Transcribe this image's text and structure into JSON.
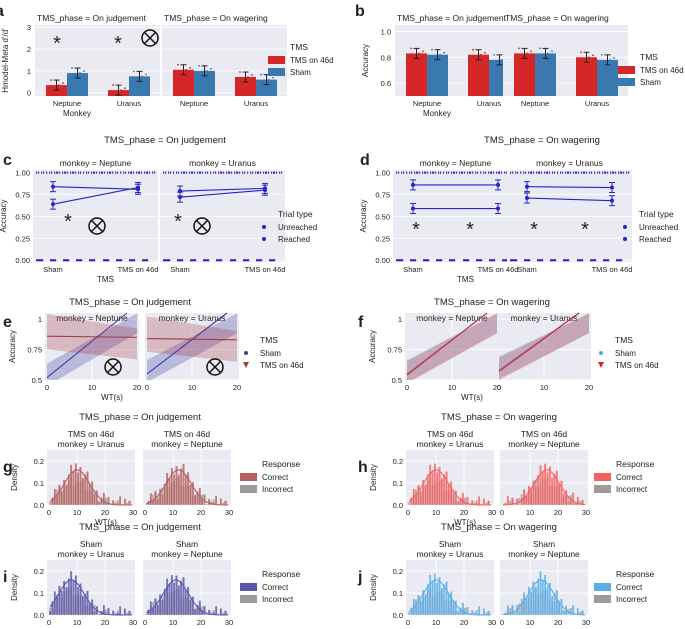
{
  "panels": {
    "a": {
      "label": "a",
      "subtitles": [
        "TMS_phase = On judgement",
        "TMS_phase = On wagering"
      ],
      "ylabel": "Hmodel-Meta d'/d'",
      "xlabel": "Monkey",
      "yticks": [
        "0",
        "1",
        "2",
        "3"
      ],
      "xticks": [
        "Neptune",
        "Uranus"
      ],
      "legend_title": "TMS",
      "legend": [
        "TMS on 46d",
        "Sham"
      ],
      "stars": [
        "*",
        "*"
      ],
      "colors": {
        "tms": "#d62728",
        "sham": "#3a78b0"
      },
      "chart_data": {
        "type": "bar",
        "categories": [
          "Neptune",
          "Uranus"
        ],
        "ylim": [
          0,
          3
        ],
        "series": [
          {
            "name": "TMS on 46d",
            "judgement": [
              0.35,
              0.12
            ],
            "wagering": [
              1.05,
              0.72
            ]
          },
          {
            "name": "Sham",
            "judgement": [
              0.9,
              0.75
            ],
            "wagering": [
              1.0,
              0.6
            ]
          }
        ]
      }
    },
    "b": {
      "label": "b",
      "subtitles": [
        "TMS_phase = On judgement",
        "TMS_phase = On wagering"
      ],
      "ylabel": "Accuracy",
      "xlabel": "Monkey",
      "yticks": [
        "0.6",
        "0.8",
        "1.0"
      ],
      "xticks": [
        "Neptune",
        "Uranus"
      ],
      "legend_title": "TMS",
      "legend": [
        "TMS on 46d",
        "Sham"
      ],
      "chart_data": {
        "type": "bar",
        "categories": [
          "Neptune",
          "Uranus"
        ],
        "ylim": [
          0.5,
          1.05
        ],
        "series": [
          {
            "name": "TMS on 46d",
            "judgement": [
              0.83,
              0.82
            ],
            "wagering": [
              0.83,
              0.8
            ]
          },
          {
            "name": "Sham",
            "judgement": [
              0.82,
              0.78
            ],
            "wagering": [
              0.83,
              0.78
            ]
          }
        ]
      }
    },
    "c": {
      "label": "c",
      "title": "TMS_phase = On judgement",
      "subtitles": [
        "monkey = Neptune",
        "monkey = Uranus"
      ],
      "ylabel": "Accuracy",
      "xlabel": "TMS",
      "yticks": [
        "0.00",
        "0.25",
        "0.50",
        "0.75",
        "1.00"
      ],
      "xticks": [
        "Sham",
        "TMS on 46d"
      ],
      "legend_title": "Trial type",
      "legend": [
        "Unreached",
        "Reached"
      ],
      "chart_data": {
        "type": "line",
        "categories": [
          "Sham",
          "TMS on 46d"
        ],
        "ylim": [
          0,
          1
        ],
        "series": [
          {
            "name": "Unreached",
            "Neptune": [
              0.64,
              0.83
            ],
            "Uranus": [
              0.72,
              0.8
            ]
          },
          {
            "name": "Reached",
            "Neptune": [
              0.84,
              0.81
            ],
            "Uranus": [
              0.79,
              0.82
            ]
          }
        ]
      }
    },
    "d": {
      "label": "d",
      "title": "TMS_phase = On wagering",
      "subtitles": [
        "monkey = Neptune",
        "monkey = Uranus"
      ],
      "ylabel": "Accuracy",
      "xlabel": "TMS",
      "yticks": [
        "0.00",
        "0.25",
        "0.50",
        "0.75",
        "1.00"
      ],
      "xticks": [
        "Sham",
        "TMS on 46d"
      ],
      "legend_title": "Trial type",
      "legend": [
        "Unreached",
        "Reached"
      ],
      "chart_data": {
        "type": "line",
        "categories": [
          "Sham",
          "TMS on 46d"
        ],
        "ylim": [
          0,
          1
        ],
        "series": [
          {
            "name": "Unreached",
            "Neptune": [
              0.59,
              0.59
            ],
            "Uranus": [
              0.71,
              0.68
            ]
          },
          {
            "name": "Reached",
            "Neptune": [
              0.86,
              0.86
            ],
            "Uranus": [
              0.84,
              0.83
            ]
          }
        ]
      }
    },
    "e": {
      "label": "e",
      "title": "TMS_phase = On judgement",
      "subtitles": [
        "monkey = Neptune",
        "monkey = Uranus"
      ],
      "ylabel": "Accuracy",
      "xlabel": "WT(s)",
      "yticks": [
        "0.5",
        "0.75",
        "1"
      ],
      "xticks": [
        "0",
        "10",
        "20"
      ],
      "legend_title": "TMS",
      "legend": [
        "Sham",
        "TMS on 46d"
      ],
      "chart_data": {
        "type": "line",
        "xlim": [
          0,
          20
        ],
        "ylim": [
          0.5,
          1.05
        ],
        "series": [
          {
            "name": "Sham",
            "x": [
              0,
              20
            ],
            "Neptune": [
              0.52,
              1.0
            ],
            "Uranus": [
              0.55,
              1.0
            ]
          },
          {
            "name": "TMS on 46d",
            "x": [
              0,
              20
            ],
            "Neptune": [
              0.86,
              0.85
            ],
            "Uranus": [
              0.84,
              0.83
            ]
          }
        ]
      }
    },
    "f": {
      "label": "f",
      "title": "TMS_phase = On wagering",
      "subtitles": [
        "monkey = Neptune",
        "monkey = Uranus"
      ],
      "ylabel": "Accuracy",
      "xlabel": "WT(s)",
      "yticks": [
        "0.5",
        "0.75",
        "1"
      ],
      "xticks": [
        "0",
        "10",
        "20"
      ],
      "legend_title": "TMS",
      "legend": [
        "Sham",
        "TMS on 46d"
      ],
      "chart_data": {
        "type": "line",
        "xlim": [
          0,
          20
        ],
        "ylim": [
          0.5,
          1.05
        ],
        "series": [
          {
            "name": "Sham",
            "x": [
              0,
              20
            ],
            "Neptune": [
              0.55,
              1.0
            ],
            "Uranus": [
              0.58,
              1.0
            ]
          },
          {
            "name": "TMS on 46d",
            "x": [
              0,
              20
            ],
            "Neptune": [
              0.54,
              1.0
            ],
            "Uranus": [
              0.57,
              1.0
            ]
          }
        ]
      }
    },
    "g": {
      "label": "g",
      "title": "TMS_phase = On judgement",
      "subtitles": [
        [
          "TMS on 46d",
          "monkey = Uranus"
        ],
        [
          "TMS on 46d",
          "monkey = Neptune"
        ]
      ],
      "ylabel": "Density",
      "xlabel": "WT(s)",
      "yticks": [
        "0.0",
        "0.1",
        "0.2"
      ],
      "xticks": [
        "0",
        "10",
        "20",
        "30"
      ],
      "legend_title": "Response",
      "legend": [
        "Correct",
        "Incorrect"
      ],
      "colors": {
        "correct": "#b5605f",
        "incorrect": "#9c9c9c"
      },
      "chart_data": {
        "type": "histogram",
        "xlim": [
          0,
          30
        ],
        "ylim": [
          0,
          0.25
        ],
        "peak_wt": [
          10,
          12
        ]
      }
    },
    "h": {
      "label": "h",
      "title": "TMS_phase = On wagering",
      "subtitles": [
        [
          "TMS on 46d",
          "monkey = Uranus"
        ],
        [
          "TMS on 46d",
          "monkey = Neptune"
        ]
      ],
      "ylabel": "Density",
      "xlabel": "WT(s)",
      "yticks": [
        "0.0",
        "0.1",
        "0.2"
      ],
      "xticks": [
        "0",
        "10",
        "20",
        "30"
      ],
      "legend_title": "Response",
      "legend": [
        "Correct",
        "Incorrect"
      ],
      "colors": {
        "correct": "#f26060",
        "incorrect": "#9c9c9c"
      },
      "chart_data": {
        "type": "histogram",
        "xlim": [
          0,
          30
        ],
        "ylim": [
          0,
          0.25
        ],
        "peak_wt": [
          10,
          16
        ]
      }
    },
    "i": {
      "label": "i",
      "title": "TMS_phase = On judgement",
      "subtitles": [
        [
          "Sham",
          "monkey = Uranus"
        ],
        [
          "Sham",
          "monkey = Neptune"
        ]
      ],
      "ylabel": "Density",
      "xlabel": "WT(s)",
      "yticks": [
        "0.0",
        "0.1",
        "0.2"
      ],
      "xticks": [
        "0",
        "10",
        "20",
        "30"
      ],
      "legend_title": "Response",
      "legend": [
        "Correct",
        "Incorrect"
      ],
      "colors": {
        "correct": "#5a55a8",
        "incorrect": "#9c9c9c"
      },
      "chart_data": {
        "type": "histogram",
        "xlim": [
          0,
          30
        ],
        "ylim": [
          0,
          0.25
        ],
        "peak_wt": [
          8,
          11
        ]
      }
    },
    "j": {
      "label": "j",
      "title": "TMS_phase = On wagering",
      "subtitles": [
        [
          "Sham",
          "monkey = Uranus"
        ],
        [
          "Sham",
          "monkey = Neptune"
        ]
      ],
      "ylabel": "Density",
      "xlabel": "WT(s)",
      "yticks": [
        "0.0",
        "0.1",
        "0.2"
      ],
      "xticks": [
        "0",
        "10",
        "20",
        "30"
      ],
      "legend_title": "Response",
      "legend": [
        "Correct",
        "Incorrect"
      ],
      "colors": {
        "correct": "#5aaee8",
        "incorrect": "#9c9c9c"
      },
      "chart_data": {
        "type": "histogram",
        "xlim": [
          0,
          30
        ],
        "ylim": [
          0,
          0.25
        ],
        "peak_wt": [
          10,
          14
        ]
      }
    }
  }
}
